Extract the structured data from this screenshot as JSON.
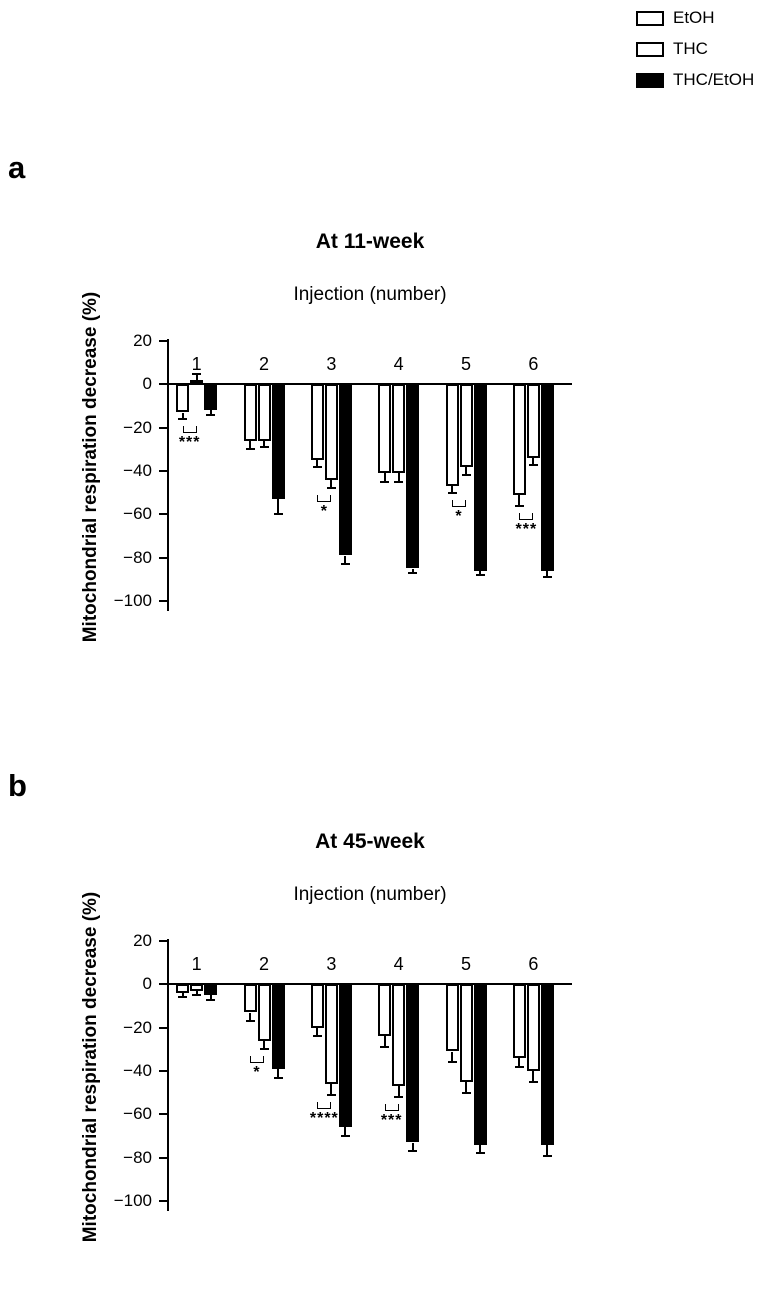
{
  "legend": {
    "items": [
      {
        "label": "EtOH",
        "swatch": "white"
      },
      {
        "label": "THC",
        "swatch": "checker"
      },
      {
        "label": "THC/EtOH",
        "swatch": "black"
      }
    ]
  },
  "chart_data": [
    {
      "type": "bar",
      "panel": "a",
      "title": "At 11-week",
      "xlabel": "Injection (number)",
      "ylabel": "Mitochondrial respiration decrease (%)",
      "categories": [
        "1",
        "2",
        "3",
        "4",
        "5",
        "6"
      ],
      "ylim": [
        -100,
        20
      ],
      "yticks": [
        20,
        0,
        -20,
        -40,
        -60,
        -80,
        -100
      ],
      "grid": false,
      "legend_position": "top-right",
      "series": [
        {
          "name": "EtOH",
          "values": [
            -13,
            -26,
            -35,
            -41,
            -47,
            -51
          ],
          "errors": [
            3,
            4,
            3,
            4,
            3,
            5
          ]
        },
        {
          "name": "THC",
          "values": [
            2,
            -26,
            -44,
            -41,
            -38,
            -34
          ],
          "errors": [
            3,
            3,
            4,
            4,
            4,
            3
          ]
        },
        {
          "name": "THC/EtOH",
          "values": [
            -12,
            -53,
            -79,
            -85,
            -86,
            -86
          ],
          "errors": [
            2,
            7,
            4,
            2,
            2,
            3
          ]
        }
      ],
      "significance": [
        {
          "category": "1",
          "between": [
            "EtOH",
            "THC"
          ],
          "label": "***"
        },
        {
          "category": "3",
          "between": [
            "EtOH",
            "THC"
          ],
          "label": "*"
        },
        {
          "category": "5",
          "between": [
            "EtOH",
            "THC"
          ],
          "label": "*"
        },
        {
          "category": "6",
          "between": [
            "EtOH",
            "THC"
          ],
          "label": "***"
        }
      ]
    },
    {
      "type": "bar",
      "panel": "b",
      "title": "At 45-week",
      "xlabel": "Injection (number)",
      "ylabel": "Mitochondrial respiration decrease (%)",
      "categories": [
        "1",
        "2",
        "3",
        "4",
        "5",
        "6"
      ],
      "ylim": [
        -100,
        20
      ],
      "yticks": [
        20,
        0,
        -20,
        -40,
        -60,
        -80,
        -100
      ],
      "grid": false,
      "legend_position": "top-right",
      "series": [
        {
          "name": "EtOH",
          "values": [
            -4,
            -13,
            -20,
            -24,
            -31,
            -34
          ],
          "errors": [
            2,
            4,
            4,
            5,
            5,
            4
          ]
        },
        {
          "name": "THC",
          "values": [
            -3,
            -26,
            -46,
            -47,
            -45,
            -40
          ],
          "errors": [
            2,
            4,
            5,
            5,
            5,
            5
          ]
        },
        {
          "name": "THC/EtOH",
          "values": [
            -5,
            -39,
            -66,
            -73,
            -74,
            -74
          ],
          "errors": [
            2,
            4,
            4,
            4,
            4,
            5
          ]
        }
      ],
      "significance": [
        {
          "category": "2",
          "between": [
            "EtOH",
            "THC"
          ],
          "label": "*"
        },
        {
          "category": "3",
          "between": [
            "EtOH",
            "THC"
          ],
          "label": "****"
        },
        {
          "category": "4",
          "between": [
            "EtOH",
            "THC"
          ],
          "label": "***"
        }
      ]
    }
  ]
}
